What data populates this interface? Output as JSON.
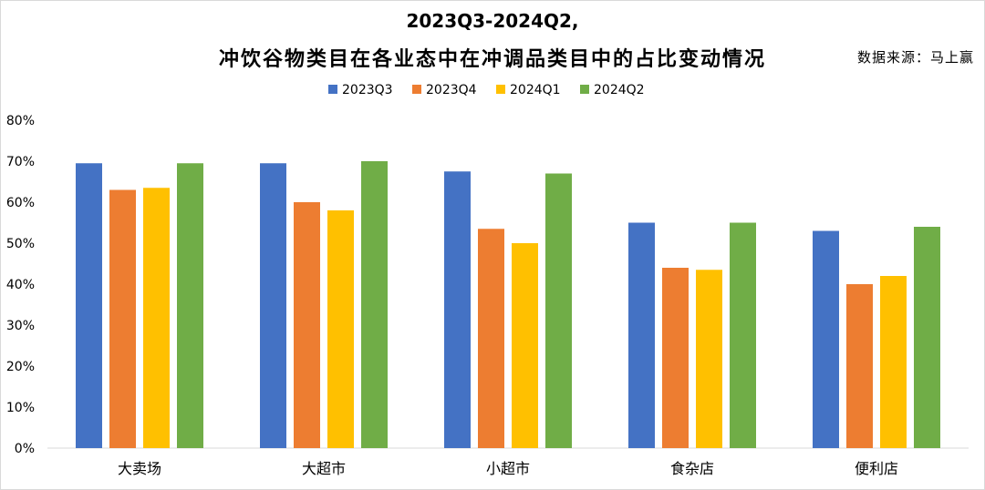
{
  "title_line1": "2023Q3-2024Q2,",
  "title_line2": "冲饮谷物类目在各业态中在冲调品类目中的占比变动情况",
  "source": "数据来源：马上赢",
  "chart_data": {
    "type": "bar",
    "categories": [
      "大卖场",
      "大超市",
      "小超市",
      "食杂店",
      "便利店"
    ],
    "series": [
      {
        "name": "2023Q3",
        "color": "#4472c4",
        "values": [
          69.5,
          69.5,
          67.5,
          55,
          53
        ]
      },
      {
        "name": "2023Q4",
        "color": "#ed7d31",
        "values": [
          63,
          60,
          53.5,
          44,
          40
        ]
      },
      {
        "name": "2024Q1",
        "color": "#ffc000",
        "values": [
          63.5,
          58,
          50,
          43.5,
          42
        ]
      },
      {
        "name": "2024Q2",
        "color": "#70ad47",
        "values": [
          69.5,
          70,
          67,
          55,
          54
        ]
      }
    ],
    "ylim": [
      0,
      80
    ],
    "y_ticks": [
      "0%",
      "10%",
      "20%",
      "30%",
      "40%",
      "50%",
      "60%",
      "70%",
      "80%"
    ],
    "legend_position": "top",
    "grid": false
  }
}
